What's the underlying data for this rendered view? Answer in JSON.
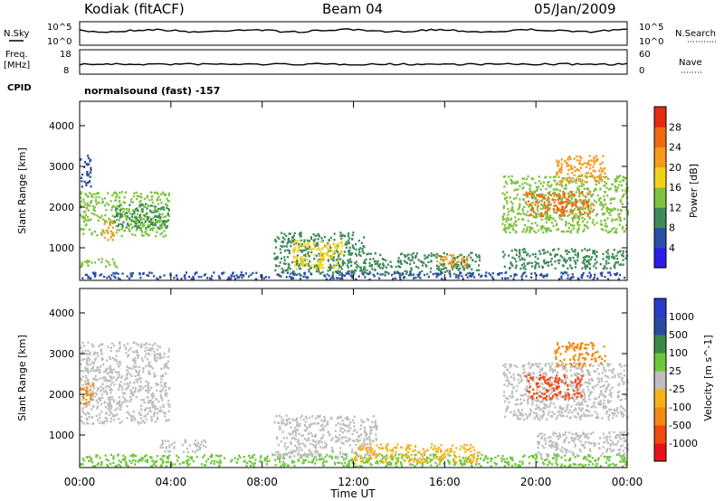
{
  "header": {
    "station": "Kodiak (fitACF)",
    "beam": "Beam 04",
    "date": "05/Jan/2009"
  },
  "noise_panel": {
    "left_label": "N.Sky",
    "left_ticks": [
      "10^5",
      "10^0"
    ],
    "right_label": "N.Search",
    "right_ticks": [
      "10^5",
      "10^0"
    ]
  },
  "freq_panel": {
    "left_label_1": "Freq.",
    "left_label_2": "[MHz]",
    "left_ticks": [
      "18",
      "8"
    ],
    "right_label": "Nave",
    "right_ticks": [
      "60",
      "0"
    ]
  },
  "cpid": {
    "label": "CPID",
    "text": "normalsound (fast) -157"
  },
  "time_axis": {
    "label": "Time UT",
    "ticks": [
      "00:00",
      "04:00",
      "08:00",
      "12:00",
      "16:00",
      "20:00",
      "00:00"
    ]
  },
  "colors": {
    "power": [
      "#2a1fe8",
      "#2b4fa6",
      "#3f8a5a",
      "#7fc23e",
      "#f5d21a",
      "#f59a1a",
      "#f06a12",
      "#e82a12"
    ],
    "velocity": [
      "#e8121a",
      "#f24a12",
      "#f08a12",
      "#f5b21a",
      "#bebebe",
      "#6cc83a",
      "#3c8a4a",
      "#2a4aa6",
      "#2a3acb"
    ]
  },
  "chart_data": [
    {
      "type": "heatmap",
      "title": "",
      "xlabel": "Time UT",
      "ylabel": "Slant Range [km]",
      "xlim_hours": [
        0,
        24
      ],
      "ylim": [
        200,
        4600
      ],
      "y_ticks": [
        1000,
        2000,
        3000,
        4000
      ],
      "colorbar": {
        "label": "Power [dB]",
        "ticks": [
          "4",
          "8",
          "12",
          "16",
          "20",
          "24",
          "28"
        ],
        "range": [
          0,
          32
        ]
      },
      "regions": [
        {
          "t0": 0.0,
          "t1": 3.9,
          "r0": 1300,
          "r1": 2400,
          "level": 13
        },
        {
          "t0": 1.0,
          "t1": 1.5,
          "r0": 1200,
          "r1": 1700,
          "level": 21
        },
        {
          "t0": 1.5,
          "t1": 3.9,
          "r0": 1500,
          "r1": 2100,
          "level": 8
        },
        {
          "t0": 0.0,
          "t1": 0.5,
          "r0": 2500,
          "r1": 3300,
          "level": 7
        },
        {
          "t0": 0.0,
          "t1": 1.6,
          "r0": 550,
          "r1": 750,
          "level": 13
        },
        {
          "t0": 8.5,
          "t1": 12.5,
          "r0": 350,
          "r1": 1400,
          "level": 10
        },
        {
          "t0": 9.3,
          "t1": 11.5,
          "r0": 500,
          "r1": 1200,
          "level": 19
        },
        {
          "t0": 12.5,
          "t1": 17.5,
          "r0": 350,
          "r1": 900,
          "level": 9
        },
        {
          "t0": 15.5,
          "t1": 17.0,
          "r0": 550,
          "r1": 850,
          "level": 21
        },
        {
          "t0": 0.0,
          "t1": 24.0,
          "r0": 250,
          "r1": 420,
          "level": 7
        },
        {
          "t0": 18.5,
          "t1": 24.0,
          "r0": 1400,
          "r1": 2800,
          "level": 13
        },
        {
          "t0": 19.5,
          "t1": 22.5,
          "r0": 1800,
          "r1": 2400,
          "level": 25
        },
        {
          "t0": 20.8,
          "t1": 23.0,
          "r0": 2600,
          "r1": 3300,
          "level": 20
        },
        {
          "t0": 18.5,
          "t1": 24.0,
          "r0": 500,
          "r1": 1000,
          "level": 9
        }
      ]
    },
    {
      "type": "heatmap",
      "title": "",
      "xlabel": "Time UT",
      "ylabel": "Slant Range [km]",
      "xlim_hours": [
        0,
        24
      ],
      "ylim": [
        200,
        4600
      ],
      "y_ticks": [
        1000,
        2000,
        3000,
        4000
      ],
      "colorbar": {
        "label": "Velocity [m s^-1]",
        "ticks": [
          "-1000",
          "-500",
          "-100",
          "-25",
          "25",
          "100",
          "500",
          "1000"
        ]
      },
      "regions": [
        {
          "t0": 0.0,
          "t1": 3.9,
          "r0": 1300,
          "r1": 3300,
          "bin": 4
        },
        {
          "t0": 0.0,
          "t1": 0.6,
          "r0": 1700,
          "r1": 2300,
          "bin": 2
        },
        {
          "t0": 0.0,
          "t1": 24.0,
          "r0": 250,
          "r1": 550,
          "bin": 5
        },
        {
          "t0": 8.5,
          "t1": 13.0,
          "r0": 450,
          "r1": 1500,
          "bin": 4
        },
        {
          "t0": 12.0,
          "t1": 17.5,
          "r0": 350,
          "r1": 800,
          "bin": 3
        },
        {
          "t0": 18.5,
          "t1": 24.0,
          "r0": 1400,
          "r1": 2800,
          "bin": 4
        },
        {
          "t0": 19.5,
          "t1": 22.0,
          "r0": 1900,
          "r1": 2500,
          "bin": 1
        },
        {
          "t0": 20.8,
          "t1": 23.0,
          "r0": 2700,
          "r1": 3300,
          "bin": 2
        },
        {
          "t0": 3.5,
          "t1": 5.5,
          "r0": 600,
          "r1": 900,
          "bin": 4
        },
        {
          "t0": 20.0,
          "t1": 24.0,
          "r0": 500,
          "r1": 1100,
          "bin": 4
        }
      ]
    }
  ]
}
